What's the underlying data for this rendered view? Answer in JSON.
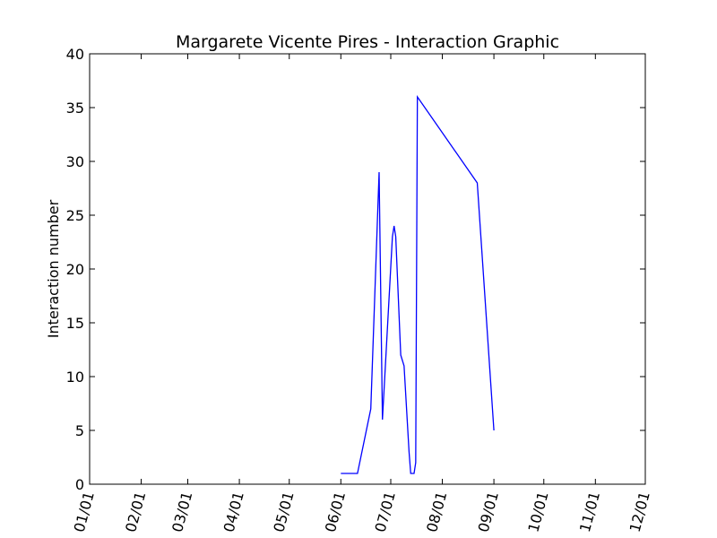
{
  "chart_data": {
    "type": "line",
    "title": "Margarete Vicente Pires - Interaction Graphic",
    "xlabel": "",
    "ylabel": "Interaction number",
    "x_tick_labels": [
      "01/01",
      "02/01",
      "03/01",
      "04/01",
      "05/01",
      "06/01",
      "07/01",
      "08/01",
      "09/01",
      "10/01",
      "11/01",
      "12/01"
    ],
    "y_tick_labels": [
      "0",
      "5",
      "10",
      "15",
      "20",
      "25",
      "30",
      "35",
      "40"
    ],
    "ylim": [
      0,
      40
    ],
    "grid": false,
    "colors": {
      "line": "#0000ff",
      "axes": "#000000",
      "background": "#ffffff"
    },
    "series": [
      {
        "x": [
          "06/01",
          "06/11",
          "06/19",
          "06/24",
          "06/26",
          "07/02",
          "07/03",
          "07/04",
          "07/07",
          "07/09",
          "07/12",
          "07/13",
          "07/15",
          "07/16",
          "07/17",
          "08/22",
          "09/01"
        ],
        "y": [
          1,
          1,
          7,
          29,
          6,
          23,
          24,
          23,
          12,
          11,
          3,
          1,
          1,
          2,
          36,
          28,
          5
        ]
      }
    ]
  }
}
